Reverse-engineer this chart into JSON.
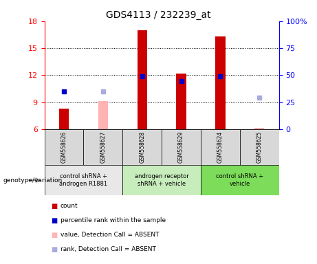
{
  "title": "GDS4113 / 232239_at",
  "samples": [
    "GSM558626",
    "GSM558627",
    "GSM558628",
    "GSM558629",
    "GSM558624",
    "GSM558625"
  ],
  "group_ranges": [
    [
      0,
      2
    ],
    [
      2,
      4
    ],
    [
      4,
      6
    ]
  ],
  "group_labels": [
    "control shRNA +\nandrogen R1881",
    "androgen receptor\nshRNA + vehicle",
    "control shRNA +\nvehicle"
  ],
  "group_colors": [
    "#e8e8e8",
    "#c8edbc",
    "#7ddd5a"
  ],
  "sample_bg_color": "#d8d8d8",
  "bar_values": [
    8.3,
    null,
    17.0,
    12.2,
    16.3,
    null
  ],
  "bar_absent_values": [
    null,
    9.1,
    null,
    null,
    null,
    6.2
  ],
  "dot_values": [
    10.2,
    null,
    11.85,
    11.35,
    11.85,
    null
  ],
  "dot_absent_values": [
    null,
    10.2,
    null,
    null,
    null,
    9.5
  ],
  "ylim_left": [
    6,
    18
  ],
  "ylim_right": [
    0,
    100
  ],
  "yticks_left": [
    6,
    9,
    12,
    15,
    18
  ],
  "yticks_right": [
    0,
    25,
    50,
    75,
    100
  ],
  "bar_color": "#cc0000",
  "bar_absent_color": "#ffb3b3",
  "dot_color": "#0000cc",
  "dot_absent_color": "#aaaadd",
  "grid_lines": [
    9,
    12,
    15
  ],
  "bar_width": 0.25,
  "dot_size": 18,
  "legend_items": [
    {
      "label": "count",
      "color": "#cc0000"
    },
    {
      "label": "percentile rank within the sample",
      "color": "#0000cc"
    },
    {
      "label": "value, Detection Call = ABSENT",
      "color": "#ffb3b3"
    },
    {
      "label": "rank, Detection Call = ABSENT",
      "color": "#aaaadd"
    }
  ]
}
